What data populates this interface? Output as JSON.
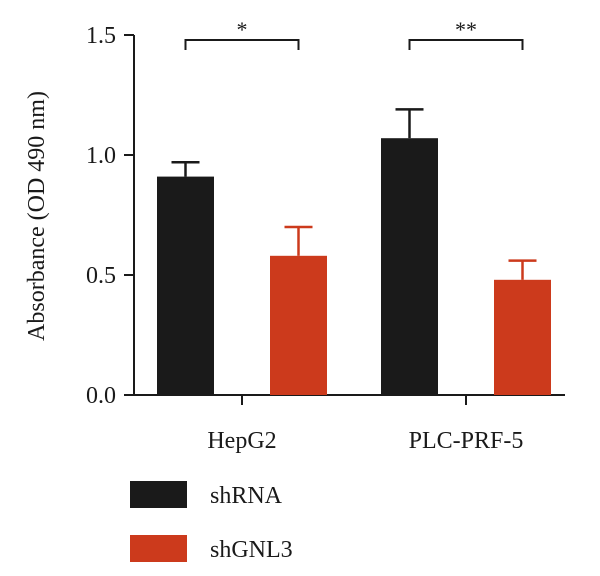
{
  "chart_data": {
    "type": "bar",
    "title": "",
    "xlabel": "",
    "ylabel": "Absorbance (OD 490 nm)",
    "ylim": [
      0,
      1.5
    ],
    "yticks": [
      "0.0",
      "0.5",
      "1.0",
      "1.5"
    ],
    "categories": [
      "HepG2",
      "PLC-PRF-5"
    ],
    "series": [
      {
        "name": "shRNA",
        "color": "#1a1a1a",
        "values": [
          0.91,
          1.07
        ],
        "errors": [
          0.06,
          0.12
        ]
      },
      {
        "name": "shGNL3",
        "color": "#cc3a1c",
        "values": [
          0.58,
          0.48
        ],
        "errors": [
          0.12,
          0.08
        ]
      }
    ],
    "significance": [
      {
        "category": "HepG2",
        "label": "*"
      },
      {
        "category": "PLC-PRF-5",
        "label": "**"
      }
    ],
    "legend_position": "bottom-left",
    "grid": false
  }
}
